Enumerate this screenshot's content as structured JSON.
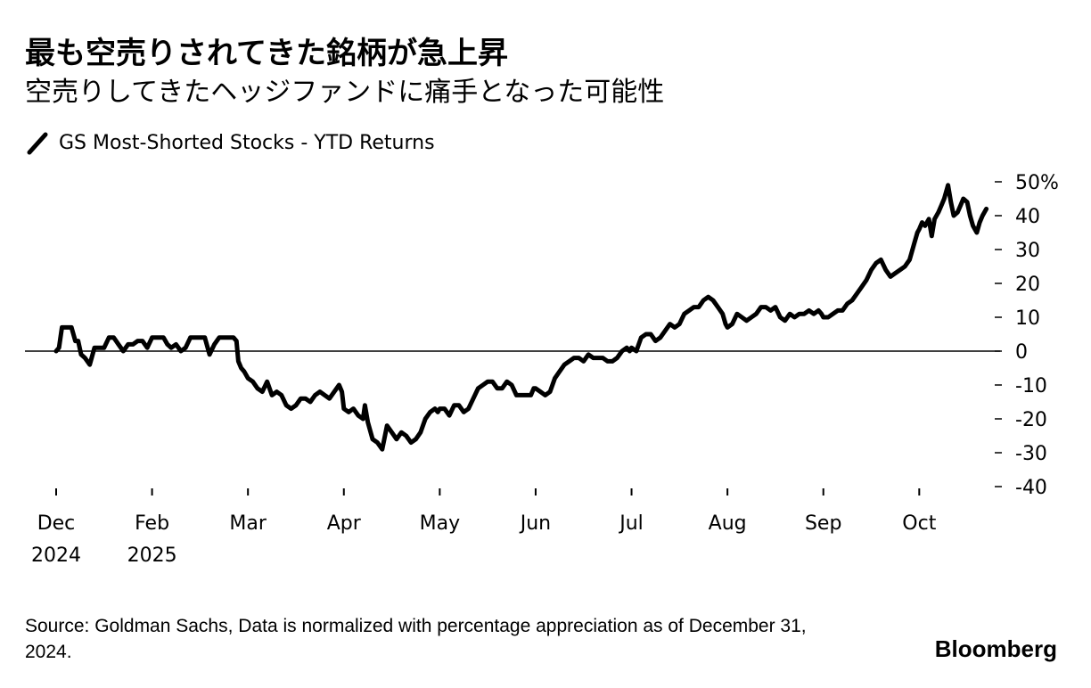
{
  "header": {
    "title": "最も空売りされてきた銘柄が急上昇",
    "subtitle": "空売りしてきたヘッジファンドに痛手となった可能性"
  },
  "legend": {
    "label": "GS Most-Shorted Stocks - YTD Returns",
    "icon": "line-icon"
  },
  "footer": {
    "source": "Source: Goldman Sachs, Data is normalized with percentage appreciation as of December 31, 2024.",
    "brand": "Bloomberg"
  },
  "chart_data": {
    "type": "line",
    "title": "GS Most-Shorted Stocks - YTD Returns",
    "xlabel": "",
    "ylabel": "",
    "ylim": [
      -40,
      50
    ],
    "yticks": [
      50,
      40,
      30,
      20,
      10,
      0,
      -10,
      -20,
      -30,
      -40
    ],
    "ytick_labels": [
      "50%",
      "40",
      "30",
      "20",
      "10",
      "0",
      "-10",
      "-20",
      "-30",
      "-40"
    ],
    "xticks": [
      {
        "pos": 0,
        "label": "Dec",
        "sublabel": "2024"
      },
      {
        "pos": 1,
        "label": "Feb",
        "sublabel": "2025"
      },
      {
        "pos": 2,
        "label": "Mar",
        "sublabel": ""
      },
      {
        "pos": 3,
        "label": "Apr",
        "sublabel": ""
      },
      {
        "pos": 4,
        "label": "May",
        "sublabel": ""
      },
      {
        "pos": 5,
        "label": "Jun",
        "sublabel": ""
      },
      {
        "pos": 6,
        "label": "Jul",
        "sublabel": ""
      },
      {
        "pos": 7,
        "label": "Aug",
        "sublabel": ""
      },
      {
        "pos": 8,
        "label": "Sep",
        "sublabel": ""
      },
      {
        "pos": 9,
        "label": "Oct",
        "sublabel": ""
      }
    ],
    "xlim": [
      0,
      9.75
    ],
    "grid": false,
    "zero_line": true,
    "legend_position": "top-left",
    "series": [
      {
        "name": "GS Most-Shorted Stocks - YTD Returns",
        "color": "#000000",
        "x": [
          0.0,
          0.03,
          0.06,
          0.1,
          0.16,
          0.2,
          0.23,
          0.26,
          0.3,
          0.35,
          0.4,
          0.45,
          0.5,
          0.55,
          0.6,
          0.65,
          0.7,
          0.75,
          0.8,
          0.85,
          0.9,
          0.95,
          1.0,
          1.04,
          1.08,
          1.12,
          1.16,
          1.2,
          1.25,
          1.3,
          1.35,
          1.4,
          1.45,
          1.5,
          1.55,
          1.6,
          1.65,
          1.7,
          1.75,
          1.8,
          1.85,
          1.88,
          1.9,
          1.93,
          1.96,
          2.0,
          2.05,
          2.1,
          2.15,
          2.2,
          2.25,
          2.3,
          2.35,
          2.4,
          2.45,
          2.5,
          2.55,
          2.6,
          2.65,
          2.7,
          2.75,
          2.8,
          2.85,
          2.9,
          2.95,
          2.98,
          3.0,
          3.05,
          3.1,
          3.15,
          3.2,
          3.22,
          3.25,
          3.3,
          3.35,
          3.4,
          3.45,
          3.5,
          3.55,
          3.6,
          3.65,
          3.7,
          3.75,
          3.8,
          3.85,
          3.9,
          3.95,
          3.98,
          4.0,
          4.05,
          4.1,
          4.15,
          4.2,
          4.25,
          4.3,
          4.35,
          4.4,
          4.45,
          4.5,
          4.55,
          4.6,
          4.65,
          4.7,
          4.75,
          4.8,
          4.85,
          4.9,
          4.95,
          4.98,
          5.0,
          5.05,
          5.1,
          5.15,
          5.2,
          5.25,
          5.3,
          5.35,
          5.4,
          5.45,
          5.5,
          5.55,
          5.6,
          5.65,
          5.7,
          5.75,
          5.8,
          5.85,
          5.9,
          5.95,
          5.98,
          6.0,
          6.05,
          6.1,
          6.15,
          6.2,
          6.25,
          6.3,
          6.35,
          6.4,
          6.45,
          6.5,
          6.55,
          6.6,
          6.65,
          6.7,
          6.75,
          6.8,
          6.85,
          6.9,
          6.95,
          6.98,
          7.0,
          7.05,
          7.1,
          7.15,
          7.2,
          7.25,
          7.3,
          7.35,
          7.4,
          7.45,
          7.5,
          7.55,
          7.6,
          7.65,
          7.7,
          7.75,
          7.8,
          7.85,
          7.9,
          7.95,
          7.98,
          8.0,
          8.05,
          8.1,
          8.15,
          8.2,
          8.25,
          8.3,
          8.35,
          8.4,
          8.45,
          8.5,
          8.55,
          8.6,
          8.65,
          8.7,
          8.75,
          8.8,
          8.85,
          8.9,
          8.95,
          8.98,
          9.0,
          9.03,
          9.06,
          9.1,
          9.13,
          9.16,
          9.2,
          9.23,
          9.26,
          9.3,
          9.33,
          9.36,
          9.4,
          9.43,
          9.46,
          9.5,
          9.53,
          9.56,
          9.6,
          9.63,
          9.66,
          9.7
        ],
        "values": [
          0,
          1,
          7,
          7,
          7,
          3,
          3,
          -1,
          -2,
          -4,
          1,
          1,
          1,
          4,
          4,
          2,
          0,
          2,
          2,
          3,
          3,
          1,
          4,
          4,
          4,
          4,
          2,
          1,
          2,
          0,
          1,
          4,
          4,
          4,
          4,
          -1,
          2,
          4,
          4,
          4,
          4,
          3,
          -3,
          -5,
          -6,
          -8,
          -9,
          -11,
          -12,
          -9,
          -13,
          -12,
          -13,
          -16,
          -17,
          -16,
          -14,
          -14,
          -15,
          -13,
          -12,
          -13,
          -14,
          -12,
          -10,
          -12,
          -17,
          -18,
          -17,
          -19,
          -20,
          -16,
          -21,
          -26,
          -27,
          -29,
          -22,
          -24,
          -26,
          -24,
          -25,
          -27,
          -26,
          -24,
          -20,
          -18,
          -17,
          -18,
          -17,
          -17,
          -19,
          -16,
          -16,
          -18,
          -17,
          -14,
          -11,
          -10,
          -9,
          -9,
          -11,
          -11,
          -9,
          -10,
          -13,
          -13,
          -13,
          -13,
          -11,
          -11,
          -12,
          -13,
          -12,
          -8,
          -6,
          -4,
          -3,
          -2,
          -2,
          -3,
          -1,
          -2,
          -2,
          -2,
          -3,
          -3,
          -2,
          0,
          1,
          0,
          1,
          0,
          4,
          5,
          5,
          3,
          4,
          6,
          8,
          7,
          8,
          11,
          12,
          13,
          13,
          15,
          16,
          15,
          13,
          11,
          8,
          7,
          8,
          11,
          10,
          9,
          10,
          11,
          13,
          13,
          12,
          13,
          10,
          9,
          11,
          10,
          11,
          11,
          12,
          11,
          12,
          11,
          10,
          10,
          11,
          12,
          12,
          14,
          15,
          17,
          19,
          21,
          24,
          26,
          27,
          24,
          22,
          23,
          24,
          25,
          27,
          32,
          35,
          36,
          38,
          37,
          39,
          34,
          39,
          41,
          43,
          45,
          49,
          44,
          40,
          41,
          43,
          45,
          44,
          40,
          37,
          35,
          38,
          40,
          42
        ]
      }
    ]
  }
}
